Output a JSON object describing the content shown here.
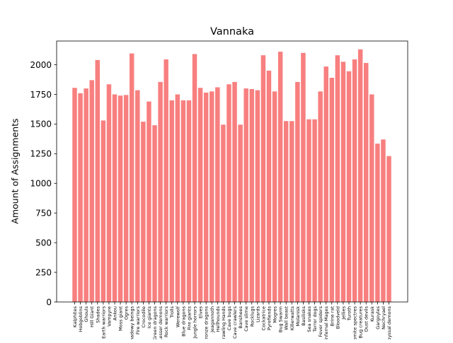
{
  "chart_data": {
    "type": "bar",
    "title": "Vannaka",
    "xlabel": "",
    "ylabel": "Amount of Assignments",
    "ylim": [
      0,
      2200
    ],
    "yticks": [
      0,
      250,
      500,
      750,
      1000,
      1250,
      1500,
      1750,
      2000
    ],
    "bar_color": "#f87f7f",
    "categories": [
      "Kalphites",
      "Hobgoblins",
      "Ghouls",
      "Hill Giant",
      "Shades",
      "Earth warriors",
      "Vampyre",
      "Ankou",
      "Moss giant",
      "Ogres",
      "Shadowy beings",
      "Fire warriors",
      "Crocodile",
      "Ice giants",
      "Green dragons",
      "Lesser demons",
      "Rock warriors",
      "Trolls",
      "Werewolf",
      "Blue dragons",
      "Fire giants",
      "Jungle horrors",
      "Elves",
      "Bronze dragons",
      "Jeagannoth",
      "Hellhounds",
      "Crawling Hands",
      "Cave bugs",
      "Cave crawlers",
      "Banshees",
      "Cave slime",
      "Rocklugs",
      "Lizards",
      "Cockatrice",
      "Pyrefiends",
      "Mogres",
      "Bug Swarm",
      "Wall beast",
      "Killerwatts",
      "Molanisk",
      "Basilisks",
      "Sea snakes",
      "Terror dogs",
      "Fever spiders",
      "Infernal Mages",
      "Brine rat",
      "Bloodveld",
      "Jellies",
      "Turoth",
      "Zygomite spectres",
      "Harpie Bug creatures",
      "Dust devils",
      "Kurask",
      "Gargoyles",
      "Nechryael",
      "Abyssal demons"
    ],
    "values": [
      1805,
      1760,
      1800,
      1870,
      2040,
      1530,
      1835,
      1750,
      1740,
      1745,
      2095,
      1785,
      1520,
      1690,
      1490,
      1855,
      2045,
      1700,
      1750,
      1700,
      1700,
      2090,
      1805,
      1765,
      1775,
      1810,
      1495,
      1835,
      1855,
      1495,
      1800,
      1795,
      1785,
      2080,
      1950,
      1775,
      2110,
      1525,
      1525,
      1855,
      2100,
      1540,
      1540,
      1775,
      1985,
      1890,
      2080,
      2025,
      1945,
      2045,
      2130,
      2015,
      1750,
      1335,
      1370,
      1230
    ]
  }
}
